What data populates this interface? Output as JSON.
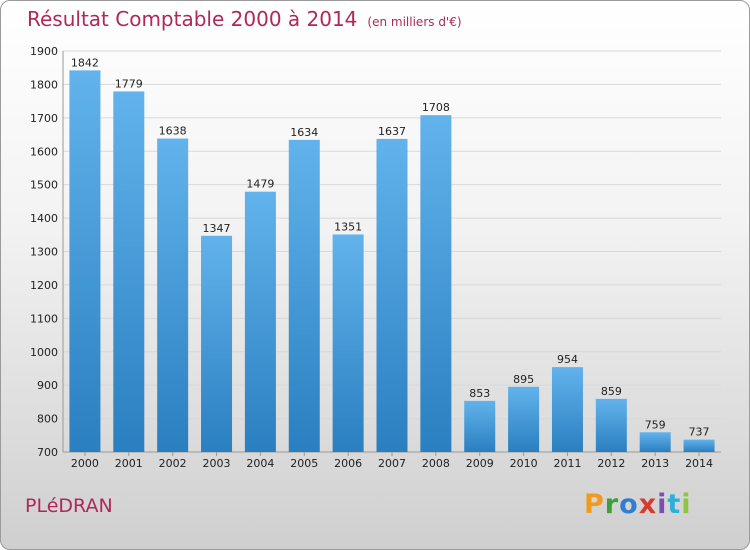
{
  "header": {
    "title": "Résultat Comptable 2000 à 2014",
    "subtitle": "(en milliers d'€)"
  },
  "footer": {
    "city": "PLéDRAN",
    "logo": "Proxiti"
  },
  "colors": {
    "bar_light": "#62b3ec",
    "bar_dark": "#2a7fc0",
    "title": "#b0285a",
    "grid": "#d8d8d8"
  },
  "chart_data": {
    "type": "bar",
    "title": "Résultat Comptable 2000 à 2014",
    "subtitle": "(en milliers d'€)",
    "xlabel": "",
    "ylabel": "",
    "categories": [
      "2000",
      "2001",
      "2002",
      "2003",
      "2004",
      "2005",
      "2006",
      "2007",
      "2008",
      "2009",
      "2010",
      "2011",
      "2012",
      "2013",
      "2014"
    ],
    "values": [
      1842,
      1779,
      1638,
      1347,
      1479,
      1634,
      1351,
      1637,
      1708,
      853,
      895,
      954,
      859,
      759,
      737
    ],
    "ylim": [
      700,
      1900
    ],
    "yticks": [
      700,
      800,
      900,
      1000,
      1100,
      1200,
      1300,
      1400,
      1500,
      1600,
      1700,
      1800,
      1900
    ],
    "grid": true,
    "legend": "none"
  }
}
